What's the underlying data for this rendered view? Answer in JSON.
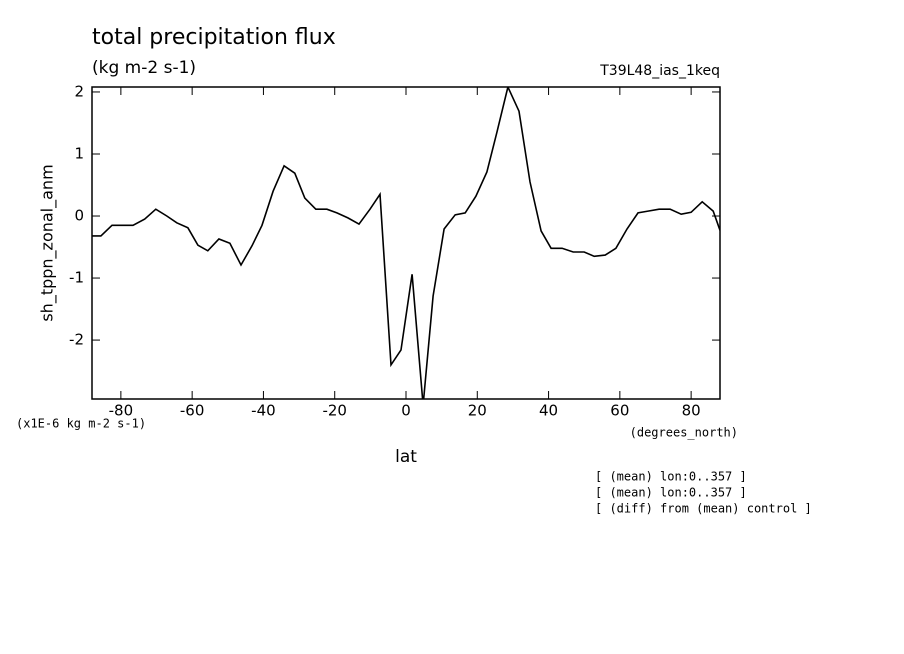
{
  "chart_data": {
    "type": "line",
    "title": "total precipitation flux",
    "subtitle": "(kg m-2 s-1)",
    "run_label": "T39L48_ias_1keq",
    "y_label": "sh_tppn_zonal_anm",
    "y_units": "(x1E-6 kg m-2 s-1)",
    "x_label": "lat",
    "x_units": "(degrees_north)",
    "notes": [
      "[ (mean) lon:0..357 ]",
      "[ (mean) lon:0..357 ]",
      "[ (diff) from (mean) control ]"
    ],
    "x": [
      -88.1,
      -85.6,
      -82.5,
      -79.7,
      -76.6,
      -73.3,
      -70.2,
      -67.1,
      -64.3,
      -61.2,
      -58.4,
      -55.6,
      -52.5,
      -49.4,
      -46.3,
      -43.2,
      -40.4,
      -37.3,
      -34.2,
      -31.2,
      -28.4,
      -25.3,
      -22.2,
      -19.4,
      -16.3,
      -13.2,
      -10.1,
      -7.3,
      -4.2,
      -1.4,
      1.7,
      4.8,
      7.6,
      10.7,
      13.8,
      16.6,
      19.6,
      22.7,
      25.5,
      28.6,
      31.7,
      34.8,
      37.9,
      40.7,
      43.8,
      46.9,
      50.0,
      52.8,
      55.9,
      58.9,
      62.0,
      65.1,
      67.9,
      71.0,
      74.1,
      77.2,
      80.0,
      83.1,
      86.2,
      88.1
    ],
    "series": [
      {
        "color": "#000000",
        "values": [
          -0.32,
          -0.32,
          -0.15,
          -0.15,
          -0.15,
          -0.05,
          0.11,
          0.0,
          -0.11,
          -0.19,
          -0.47,
          -0.56,
          -0.37,
          -0.44,
          -0.79,
          -0.48,
          -0.15,
          0.4,
          0.81,
          0.69,
          0.29,
          0.11,
          0.11,
          0.05,
          -0.03,
          -0.13,
          0.11,
          0.35,
          -2.4,
          -2.16,
          -0.94,
          -3.05,
          -1.29,
          -0.21,
          0.02,
          0.05,
          0.32,
          0.71,
          1.35,
          2.08,
          1.69,
          0.55,
          -0.24,
          -0.52,
          -0.52,
          -0.58,
          -0.58,
          -0.65,
          -0.63,
          -0.52,
          -0.21,
          0.05,
          0.08,
          0.11,
          0.11,
          0.03,
          0.06,
          0.23,
          0.08,
          -0.23
        ]
      }
    ],
    "xlim": [
      -88.1,
      88.1
    ],
    "ylim": [
      -2.95,
      2.08
    ],
    "xticks": [
      -80,
      -60,
      -40,
      -20,
      0,
      20,
      40,
      60,
      80
    ],
    "yticks": [
      -2,
      -1,
      0,
      1,
      2
    ]
  }
}
